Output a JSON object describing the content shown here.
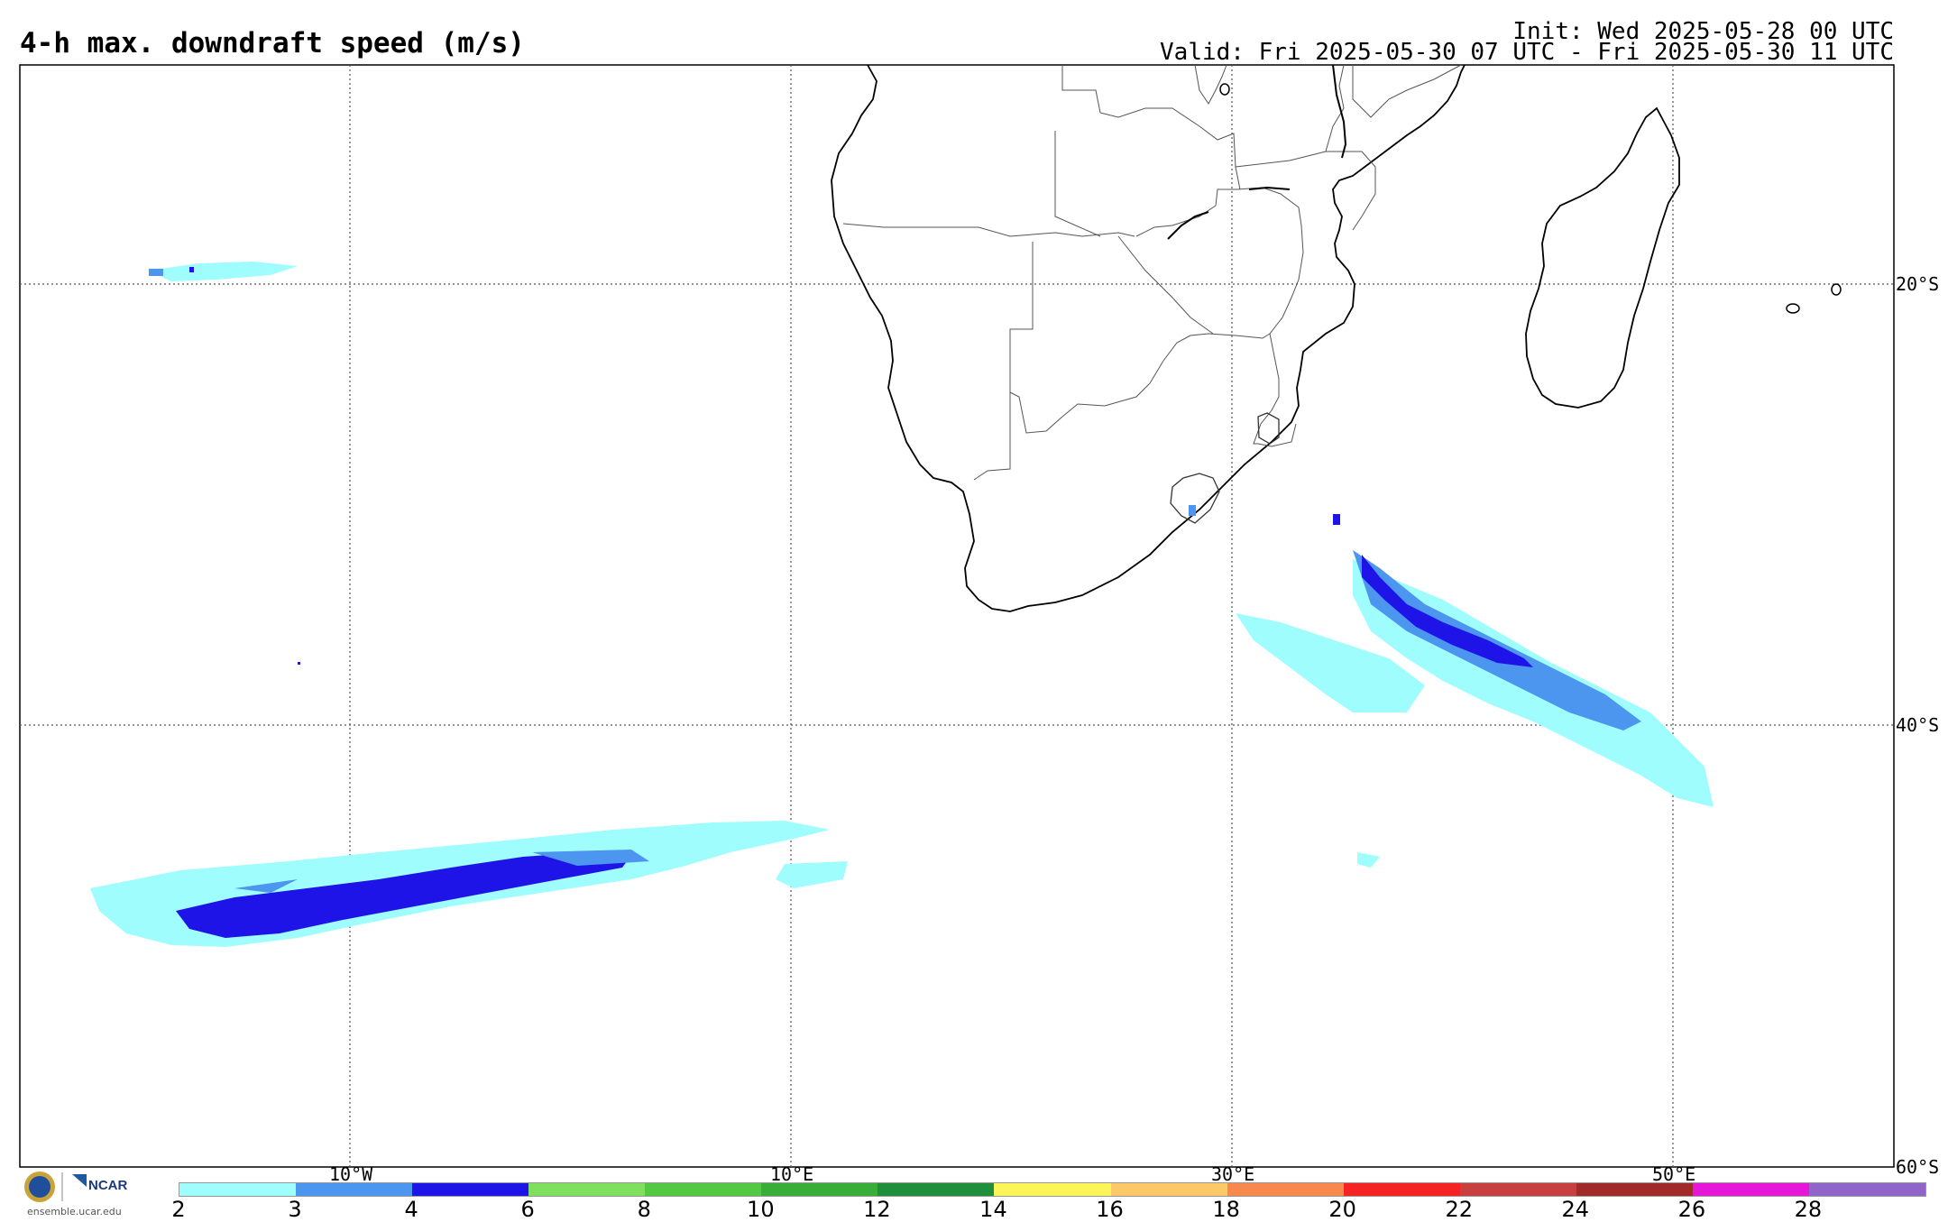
{
  "header": {
    "title": "4-h max. downdraft speed (m/s)",
    "init": "Init: Wed 2025-05-28 00 UTC",
    "valid": "Valid: Fri 2025-05-30 07 UTC - Fri 2025-05-30 11 UTC"
  },
  "map": {
    "lon_labels": [
      "10°W",
      "10°E",
      "30°E",
      "50°E"
    ],
    "lat_labels": [
      "20°S",
      "40°S",
      "60°S"
    ],
    "grid": true
  },
  "colorbar": {
    "ticks": [
      "2",
      "3",
      "4",
      "6",
      "8",
      "10",
      "12",
      "14",
      "16",
      "18",
      "20",
      "22",
      "24",
      "26",
      "28"
    ],
    "colors": [
      "#a0fdfd",
      "#4d96f0",
      "#1f14e8",
      "#7fe05f",
      "#52c843",
      "#38ae38",
      "#1f8f3c",
      "#fbf55a",
      "#fcc868",
      "#f7894f",
      "#f52323",
      "#c93e3e",
      "#a02a2a",
      "#e617d8",
      "#9064c8"
    ]
  },
  "branding": {
    "ncar": "NCAR",
    "url": "ensemble.ucar.edu"
  }
}
